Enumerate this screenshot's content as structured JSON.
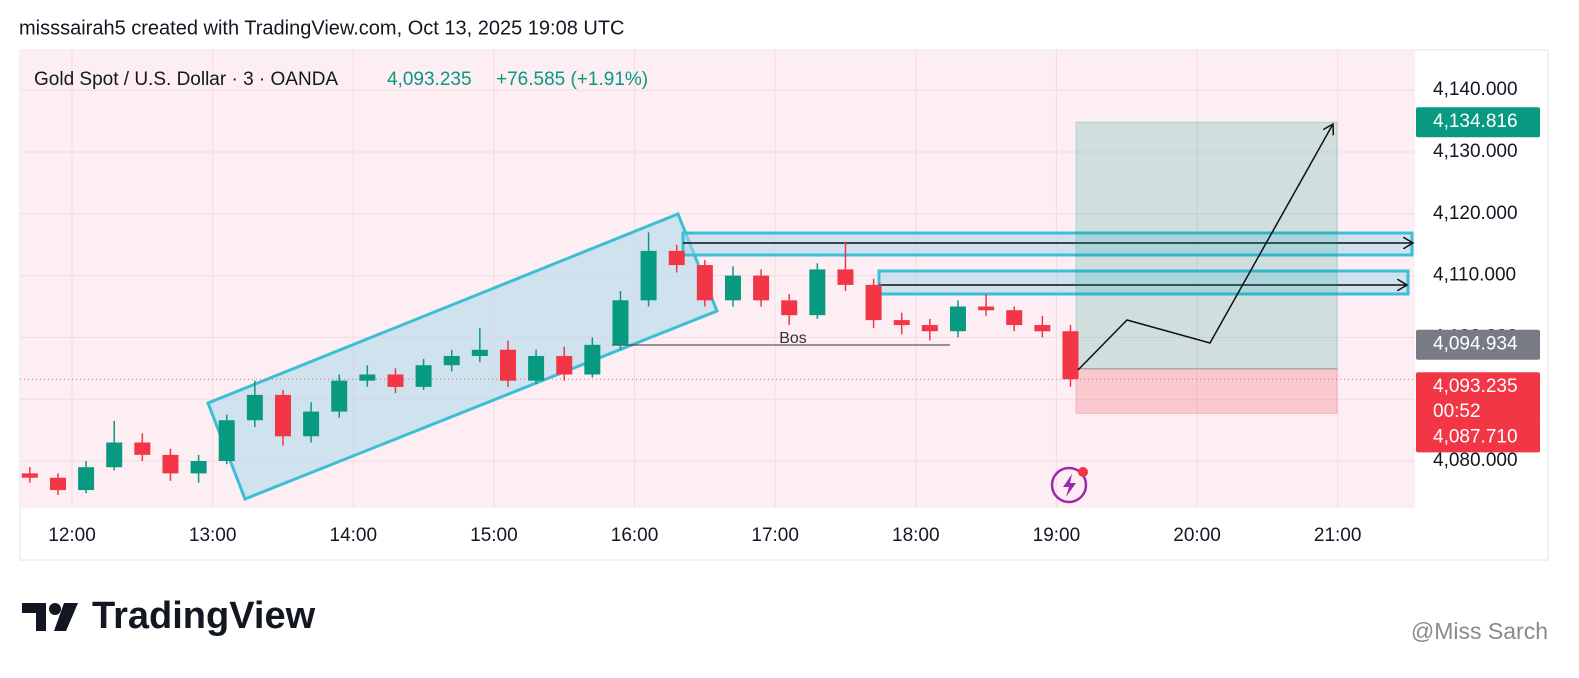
{
  "header": {
    "text": "misssairah5 created with TradingView.com, Oct 13, 2025 19:08 UTC"
  },
  "chart_data": {
    "type": "candlestick",
    "title": "Gold Spot / U.S. Dollar · 3 · OANDA",
    "last_price": "4,093.235",
    "change": "+76.585 (+1.91%)",
    "x": [
      11.7,
      11.9,
      12.1,
      12.3,
      12.5,
      12.7,
      12.9,
      13.1,
      13.3,
      13.5,
      13.7,
      13.9,
      14.1,
      14.3,
      14.5,
      14.7,
      14.9,
      15.1,
      15.3,
      15.5,
      15.7,
      15.9,
      16.1,
      16.3,
      16.5,
      16.7,
      16.9,
      17.1,
      17.3,
      17.5,
      17.7,
      17.9,
      18.1,
      18.3,
      18.5,
      18.7,
      18.9,
      19.1
    ],
    "open": [
      4078.0,
      4077.3,
      4075.3,
      4079.0,
      4083.0,
      4081.0,
      4078.0,
      4080.0,
      4086.6,
      4090.7,
      4084.0,
      4088.0,
      4093.0,
      4094.0,
      4092.0,
      4095.5,
      4097.0,
      4098.0,
      4093.0,
      4097.0,
      4094.0,
      4098.8,
      4106.0,
      4114.0,
      4111.7,
      4106.0,
      4110.0,
      4106.0,
      4103.6,
      4111.0,
      4108.5,
      4102.8,
      4102.0,
      4101.0,
      4105.0,
      4104.4,
      4102.0,
      4101.0
    ],
    "high": [
      4079.0,
      4078.0,
      4080.0,
      4086.5,
      4084.5,
      4082.0,
      4081.0,
      4087.5,
      4093.0,
      4091.5,
      4089.5,
      4094.0,
      4095.5,
      4095.0,
      4096.5,
      4098.0,
      4101.5,
      4099.5,
      4098.0,
      4098.5,
      4100.0,
      4107.5,
      4117.0,
      4115.0,
      4112.5,
      4111.5,
      4111.0,
      4107.0,
      4112.0,
      4115.5,
      4109.5,
      4104.0,
      4103.0,
      4106.0,
      4107.0,
      4105.0,
      4103.5,
      4102.0
    ],
    "low": [
      4076.5,
      4074.5,
      4074.8,
      4078.5,
      4080.0,
      4076.8,
      4076.5,
      4079.5,
      4085.5,
      4082.5,
      4083.0,
      4087.0,
      4092.0,
      4091.0,
      4091.5,
      4094.5,
      4096.0,
      4092.0,
      4092.5,
      4093.0,
      4093.5,
      4098.0,
      4105.0,
      4110.5,
      4105.0,
      4105.0,
      4105.0,
      4102.0,
      4103.0,
      4107.5,
      4101.5,
      4100.5,
      4099.5,
      4100.0,
      4103.5,
      4101.0,
      4100.0,
      4092.0
    ],
    "close": [
      4077.3,
      4075.3,
      4079.0,
      4083.0,
      4081.0,
      4078.0,
      4080.0,
      4086.6,
      4090.7,
      4084.0,
      4088.0,
      4093.0,
      4094.0,
      4092.0,
      4095.5,
      4097.0,
      4098.0,
      4093.0,
      4097.0,
      4094.0,
      4098.8,
      4106.0,
      4114.0,
      4111.7,
      4106.0,
      4110.0,
      4106.0,
      4103.6,
      4111.0,
      4108.5,
      4102.8,
      4102.0,
      4101.0,
      4105.0,
      4104.4,
      4102.0,
      4101.0,
      4093.235
    ],
    "up_color": "#089981",
    "down_color": "#f23645",
    "xlim": [
      11.63,
      21.55
    ],
    "xticks": [
      {
        "value": 12,
        "label": "12:00"
      },
      {
        "value": 13,
        "label": "13:00"
      },
      {
        "value": 14,
        "label": "14:00"
      },
      {
        "value": 15,
        "label": "15:00"
      },
      {
        "value": 16,
        "label": "16:00"
      },
      {
        "value": 17,
        "label": "17:00"
      },
      {
        "value": 18,
        "label": "18:00"
      },
      {
        "value": 19,
        "label": "19:00"
      },
      {
        "value": 20,
        "label": "20:00"
      },
      {
        "value": 21,
        "label": "21:00"
      }
    ],
    "ylim": [
      4072.4,
      4146.5
    ],
    "yticks": [
      {
        "value": 4080,
        "label": "4,080.000"
      },
      {
        "value": 4090,
        "label": "4,090.000"
      },
      {
        "value": 4100,
        "label": "4,100.000"
      },
      {
        "value": 4110,
        "label": "4,110.000"
      },
      {
        "value": 4120,
        "label": "4,120.000"
      },
      {
        "value": 4130,
        "label": "4,130.000"
      },
      {
        "value": 4140,
        "label": "4,140.000"
      }
    ],
    "grid": true,
    "annotation": "Bos",
    "price_labels": [
      {
        "value": 4134.816,
        "label": "4,134.816",
        "color": "#089981"
      },
      {
        "value": 4094.934,
        "label": "4,094.934",
        "color": "#787b86"
      },
      {
        "value": 4093.235,
        "label": "4,093.235",
        "color": "#f23645",
        "countdown": "00:52"
      },
      {
        "value": 4087.71,
        "label": "4,087.710",
        "color": "#f23645"
      }
    ]
  },
  "footer": {
    "logo": "TradingView",
    "watermark": "@Miss Sarch"
  }
}
